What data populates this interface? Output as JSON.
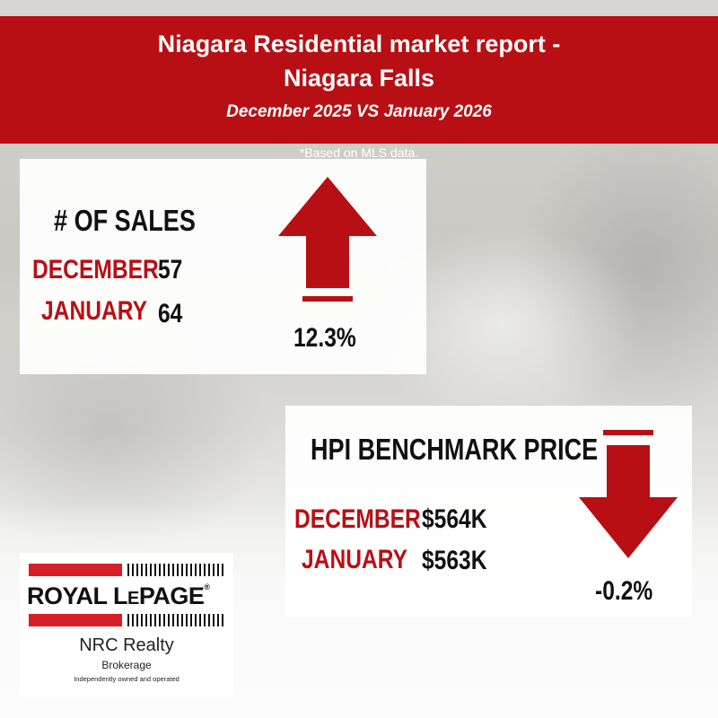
{
  "header": {
    "title_line1": "Niagara Residential market report -",
    "title_line2": "Niagara Falls",
    "subtitle": "December 2025 VS January 2026",
    "note": "*Based on MLS data."
  },
  "sales_panel": {
    "heading": "# OF SALES",
    "rows": [
      {
        "month": "DECEMBER",
        "value": "57"
      },
      {
        "month": "JANUARY",
        "value": "64"
      }
    ],
    "change": "12.3%",
    "direction": "up"
  },
  "hpi_panel": {
    "heading": "HPI BENCHMARK PRICE",
    "rows": [
      {
        "month": "DECEMBER",
        "value": "$564K"
      },
      {
        "month": "JANUARY",
        "value": "$563K"
      }
    ],
    "change": "-0.2%",
    "direction": "down"
  },
  "logo": {
    "brand_a": "ROYAL L",
    "brand_b": "E",
    "brand_c": "PAGE",
    "registered": "®",
    "office": "NRC Realty",
    "type": "Brokerage",
    "tagline": "Independently owned and operated"
  },
  "colors": {
    "accent": "#b80f14",
    "logo_red": "#d61f26"
  }
}
